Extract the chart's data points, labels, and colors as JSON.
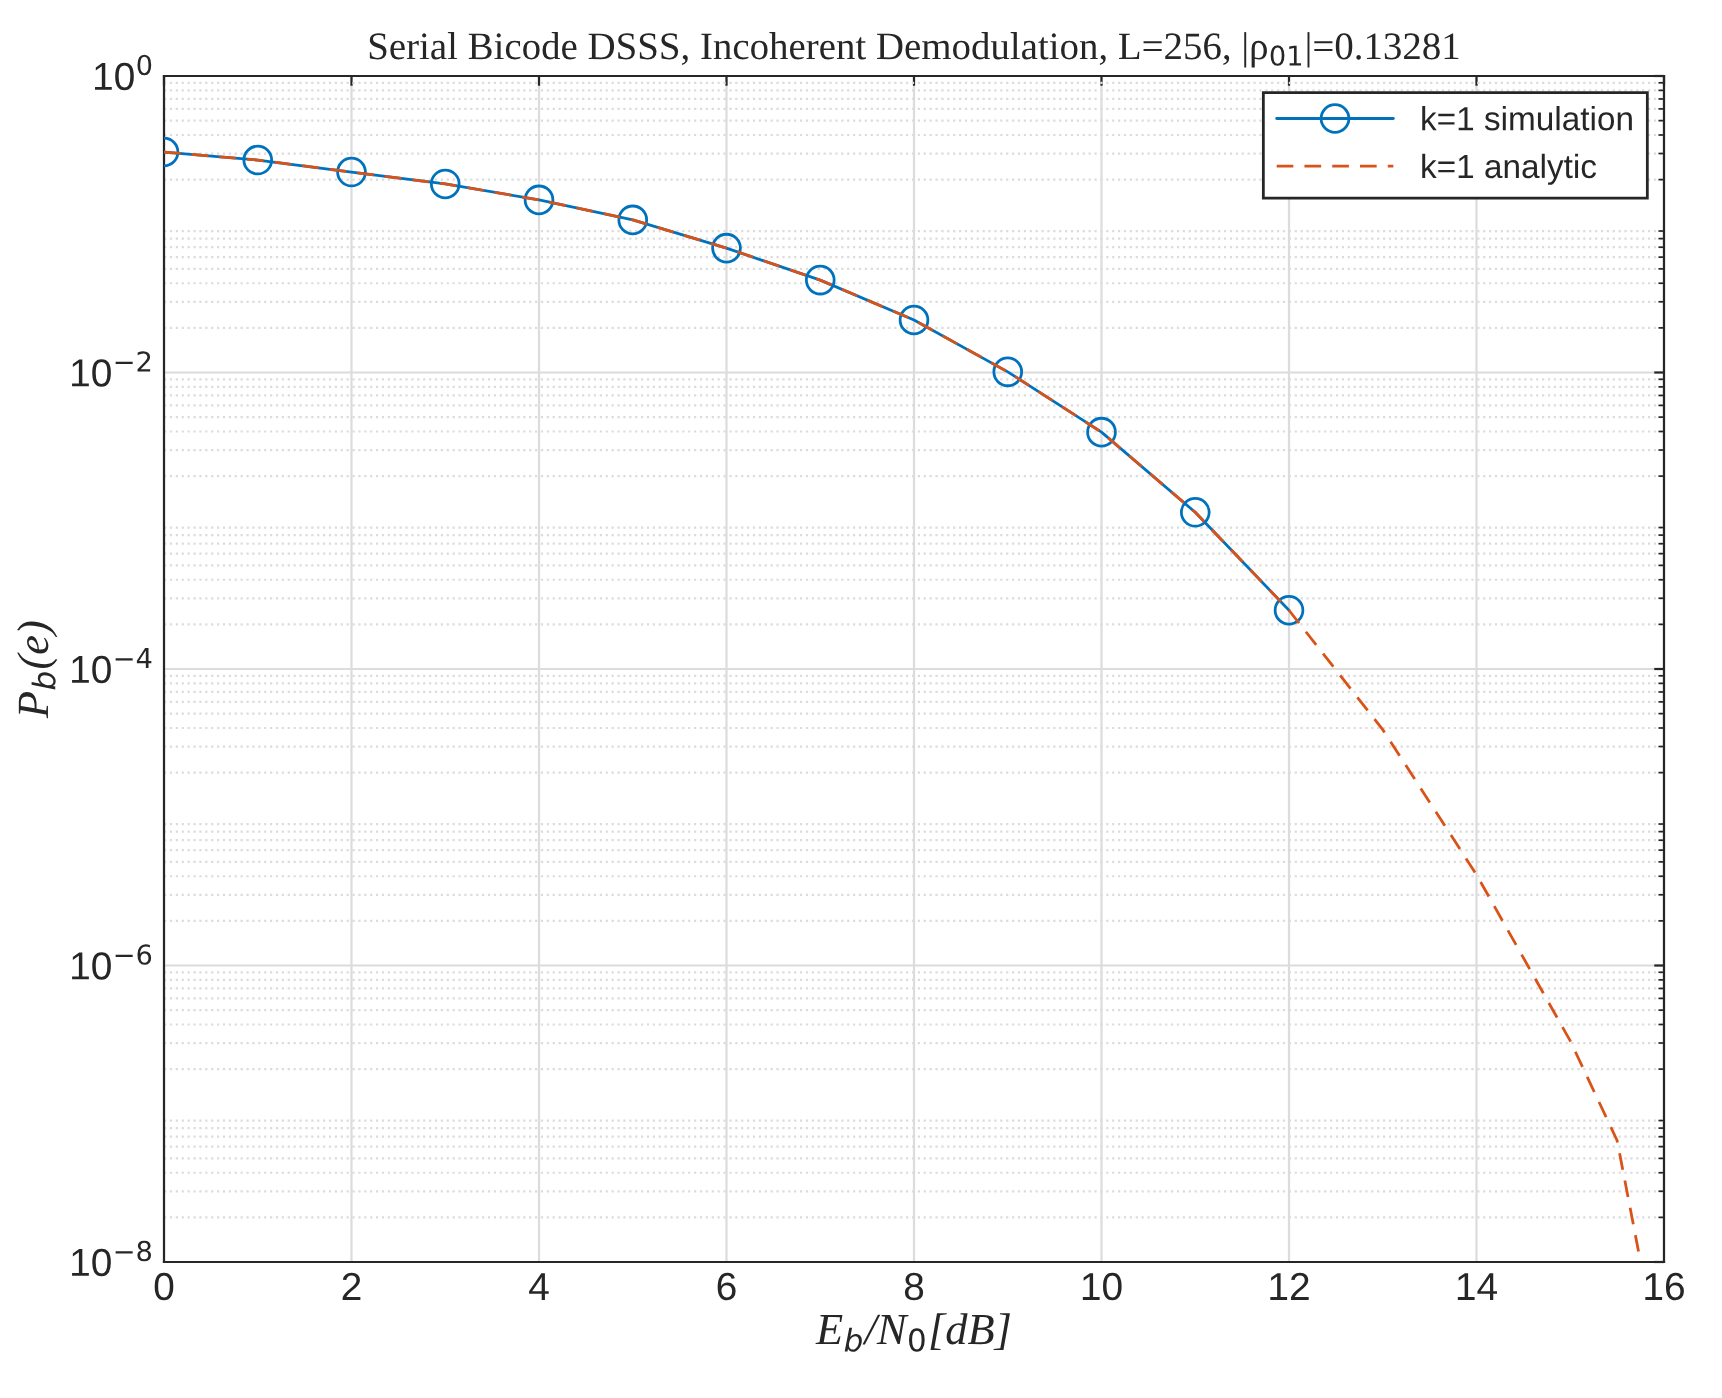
{
  "chart_data": {
    "type": "line",
    "title": "Serial Bicode DSSS, Incoherent Demodulation, L=256, |ρ$_{01}$|=0.13281",
    "xlabel": "E$_{b}$/N$_{0}$[dB]",
    "ylabel": "P$_{b}$(e)",
    "series": [
      {
        "name": "k=1 simulation",
        "color": "#0072bd",
        "marker": "circle",
        "line_style": "solid",
        "x": [
          0,
          1,
          2,
          3,
          4,
          5,
          6,
          7,
          8,
          9,
          10,
          11,
          12
        ],
        "values": [
          0.307,
          0.271,
          0.225,
          0.187,
          0.146,
          0.107,
          0.069,
          0.042,
          0.0226,
          0.0101,
          0.00396,
          0.00114,
          0.000249
        ]
      },
      {
        "name": "k=1 analytic",
        "color": "#d95319",
        "marker": "none",
        "line_style": "dashed",
        "x": [
          0,
          1,
          2,
          3,
          4,
          5,
          6,
          7,
          8,
          9,
          10,
          11,
          12,
          13,
          14,
          15,
          15.5,
          15.75
        ],
        "values": [
          0.307,
          0.271,
          0.225,
          0.187,
          0.146,
          0.107,
          0.069,
          0.042,
          0.0226,
          0.0101,
          0.00396,
          0.00114,
          0.000249,
          3.9e-05,
          4.1e-06,
          3.1e-07,
          6.6e-08,
          1e-08
        ]
      }
    ],
    "log": "y",
    "xlim": [
      0,
      16
    ],
    "xticks": [
      0,
      2,
      4,
      6,
      8,
      10,
      12,
      14,
      16
    ],
    "ylim": [
      1e-08,
      1
    ],
    "yticks": [
      {
        "value": 1e-08,
        "label": "10$^{−8}$"
      },
      {
        "value": 1e-06,
        "label": "10$^{−6}$"
      },
      {
        "value": 0.0001,
        "label": "10$^{−4}$"
      },
      {
        "value": 0.01,
        "label": "10$^{−2}$"
      },
      {
        "value": 1,
        "label": "10$^{0}$"
      }
    ],
    "grid": true,
    "legend": "top right"
  }
}
